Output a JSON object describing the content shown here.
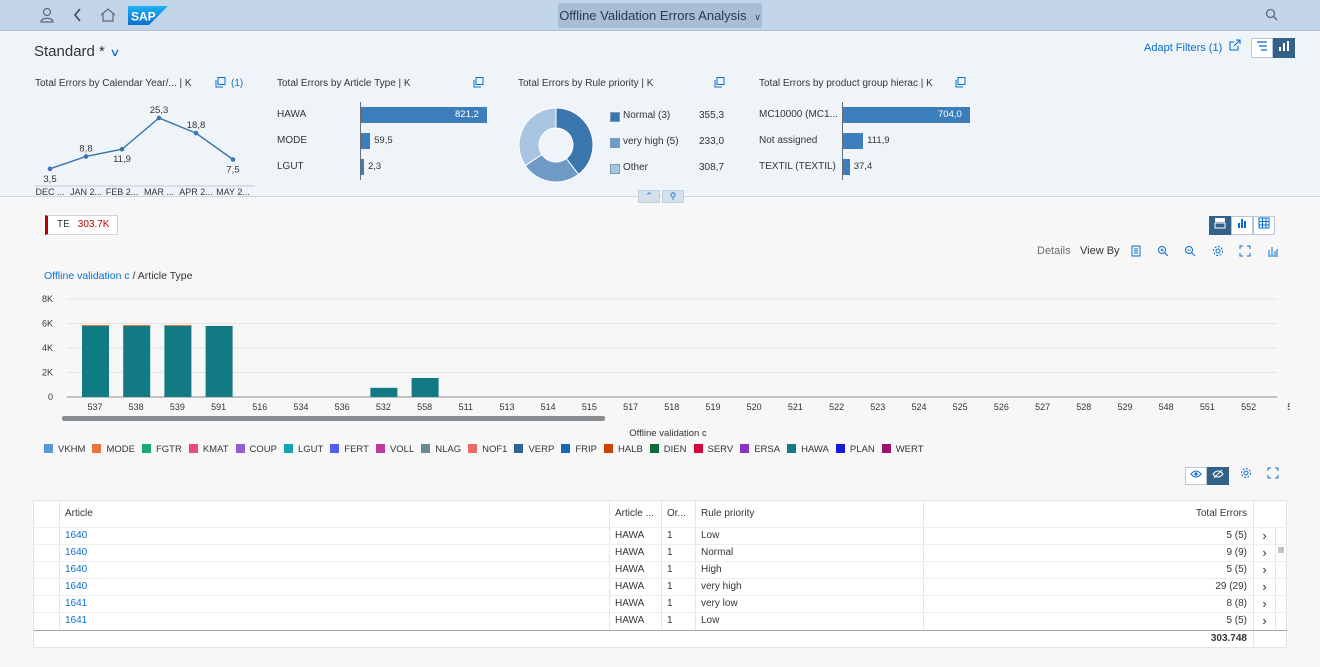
{
  "shell": {
    "app_title": "Offline Validation Errors Analysis"
  },
  "header": {
    "variant": "Standard *",
    "adapt_filters": "Adapt Filters (1)"
  },
  "cards": [
    {
      "title": "Total Errors by Calendar Year/...  | K",
      "link": "(1)",
      "type": "line",
      "points": [
        {
          "label": "DEC ...",
          "value": "3,5"
        },
        {
          "label": "JAN 2...",
          "value": "8,8"
        },
        {
          "label": "FEB 2...",
          "value": "11,9"
        },
        {
          "label": "MAR ...",
          "value": "25,3"
        },
        {
          "label": "APR 2...",
          "value": "18,8"
        },
        {
          "label": "MAY 2...",
          "value": "7,5"
        }
      ],
      "values": [
        3.5,
        8.8,
        11.9,
        25.3,
        18.8,
        7.5
      ]
    },
    {
      "title": "Total Errors by Article Type  | K",
      "type": "bar",
      "bars": [
        {
          "label": "HAWA",
          "value": "821,2",
          "num": 821.2
        },
        {
          "label": "MODE",
          "value": "59,5",
          "num": 59.5
        },
        {
          "label": "LGUT",
          "value": "2,3",
          "num": 2.3
        }
      ]
    },
    {
      "title": "Total Errors by Rule priority  | K",
      "type": "donut",
      "slices": [
        {
          "label": "Normal (3)",
          "value": "355,3",
          "num": 355.3,
          "color": "#3b75ae"
        },
        {
          "label": "very high (5)",
          "value": "233,0",
          "num": 233.0,
          "color": "#6f9ac6"
        },
        {
          "label": "Other",
          "value": "308,7",
          "num": 308.7,
          "color": "#a7c4e0"
        }
      ]
    },
    {
      "title": "Total Errors by product group hierac  | K",
      "type": "bar",
      "bars": [
        {
          "label": "MC10000 (MC1...",
          "value": "704,0",
          "num": 704.0
        },
        {
          "label": "Not assigned",
          "value": "111,9",
          "num": 111.9
        },
        {
          "label": "TEXTIL (TEXTIL)",
          "value": "37,4",
          "num": 37.4
        }
      ]
    }
  ],
  "kpi_tag": {
    "label": "TE",
    "value": "303.7K"
  },
  "toolbar": {
    "details": "Details",
    "view_by": "View By"
  },
  "breadcrumb": {
    "link": "Offline validation c",
    "separator": " / ",
    "current": "Article Type"
  },
  "chart_data": {
    "type": "bar",
    "xlabel": "Offline validation c",
    "ylabel": "",
    "ylim": [
      0,
      8000
    ],
    "y_ticks": [
      "0",
      "2K",
      "4K",
      "6K",
      "8K"
    ],
    "categories": [
      "537",
      "538",
      "539",
      "591",
      "516",
      "534",
      "536",
      "532",
      "558",
      "511",
      "513",
      "514",
      "515",
      "517",
      "518",
      "519",
      "520",
      "521",
      "522",
      "523",
      "524",
      "525",
      "526",
      "527",
      "528",
      "529",
      "548",
      "551",
      "552",
      "5"
    ],
    "series": [
      {
        "name": "HAWA",
        "color": "#117a83",
        "values": [
          5800,
          5800,
          5800,
          5800,
          0,
          0,
          0,
          750,
          1550,
          0,
          0,
          0,
          0,
          0,
          0,
          0,
          0,
          0,
          0,
          0,
          0,
          0,
          0,
          0,
          0,
          0,
          0,
          0,
          0,
          0
        ]
      },
      {
        "name": "MODE",
        "color": "#e8743b",
        "values": [
          80,
          80,
          80,
          0,
          0,
          0,
          0,
          0,
          0,
          0,
          0,
          0,
          0,
          0,
          0,
          0,
          0,
          0,
          0,
          0,
          0,
          0,
          0,
          0,
          0,
          0,
          0,
          0,
          0,
          0
        ]
      }
    ],
    "legend": [
      {
        "name": "VKHM",
        "color": "#5899da"
      },
      {
        "name": "MODE",
        "color": "#e8743b"
      },
      {
        "name": "FGTR",
        "color": "#19a979"
      },
      {
        "name": "KMAT",
        "color": "#ed4a7b"
      },
      {
        "name": "COUP",
        "color": "#945ecf"
      },
      {
        "name": "LGUT",
        "color": "#13a4b4"
      },
      {
        "name": "FERT",
        "color": "#525df4"
      },
      {
        "name": "VOLL",
        "color": "#bf399e"
      },
      {
        "name": "NLAG",
        "color": "#6c8893"
      },
      {
        "name": "NOF1",
        "color": "#ee6868"
      },
      {
        "name": "VERP",
        "color": "#2f6497"
      },
      {
        "name": "FRIP",
        "color": "#1866b4"
      },
      {
        "name": "HALB",
        "color": "#cc4300"
      },
      {
        "name": "DIEN",
        "color": "#0e6a3b"
      },
      {
        "name": "SERV",
        "color": "#d6003d"
      },
      {
        "name": "ERSA",
        "color": "#8b33c6"
      },
      {
        "name": "HAWA",
        "color": "#117a83"
      },
      {
        "name": "PLAN",
        "color": "#1a1adb"
      },
      {
        "name": "WERT",
        "color": "#9e136d"
      }
    ],
    "legend_position": "bottom"
  },
  "table": {
    "columns": [
      "Article",
      "Article ...",
      "Or...",
      "Rule priority",
      "Total Errors"
    ],
    "rows": [
      {
        "article": "1640",
        "type": "HAWA",
        "or": "1",
        "priority": "Low",
        "total": "5 (5)"
      },
      {
        "article": "1640",
        "type": "HAWA",
        "or": "1",
        "priority": "Normal",
        "total": "9 (9)"
      },
      {
        "article": "1640",
        "type": "HAWA",
        "or": "1",
        "priority": "High",
        "total": "5 (5)"
      },
      {
        "article": "1640",
        "type": "HAWA",
        "or": "1",
        "priority": "very high",
        "total": "29 (29)"
      },
      {
        "article": "1641",
        "type": "HAWA",
        "or": "1",
        "priority": "very low",
        "total": "8 (8)"
      },
      {
        "article": "1641",
        "type": "HAWA",
        "or": "1",
        "priority": "Low",
        "total": "5 (5)"
      }
    ],
    "grand_total": "303.748"
  }
}
